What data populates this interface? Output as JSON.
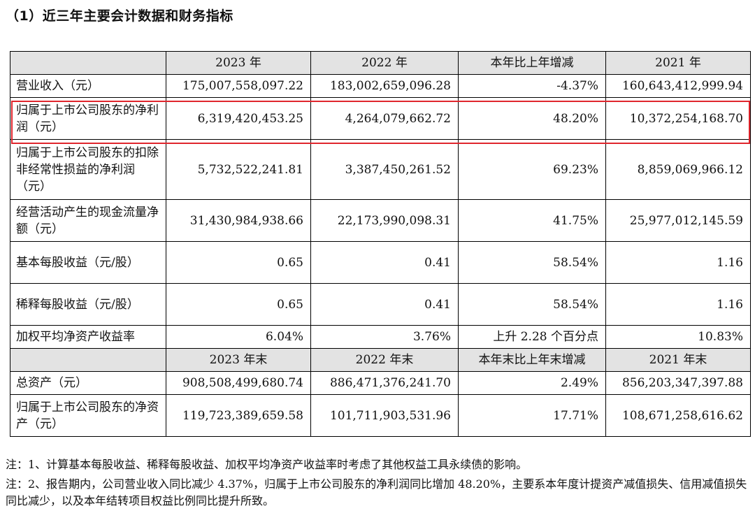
{
  "title": "（1）近三年主要会计数据和财务指标",
  "highlight_color": "#e0262d",
  "header1": [
    "",
    "2023 年",
    "2022 年",
    "本年比上年增减",
    "2021 年"
  ],
  "rows1": [
    {
      "label": "营业收入（元）",
      "v2023": "175,007,558,097.22",
      "v2022": "183,002,659,096.28",
      "change": "-4.37%",
      "v2021": "160,643,412,999.94"
    },
    {
      "label": "归属于上市公司股东的净利润（元）",
      "v2023": "6,319,420,453.25",
      "v2022": "4,264,079,662.72",
      "change": "48.20%",
      "v2021": "10,372,254,168.70"
    },
    {
      "label": "归属于上市公司股东的扣除非经常性损益的净利润（元）",
      "v2023": "5,732,522,241.81",
      "v2022": "3,387,450,261.52",
      "change": "69.23%",
      "v2021": "8,859,069,966.12"
    },
    {
      "label": "经营活动产生的现金流量净额（元）",
      "v2023": "31,430,984,938.66",
      "v2022": "22,173,990,098.31",
      "change": "41.75%",
      "v2021": "25,977,012,145.59"
    },
    {
      "label": "基本每股收益（元/股）",
      "v2023": "0.65",
      "v2022": "0.41",
      "change": "58.54%",
      "v2021": "1.16"
    },
    {
      "label": "稀释每股收益（元/股）",
      "v2023": "0.65",
      "v2022": "0.41",
      "change": "58.54%",
      "v2021": "1.16"
    },
    {
      "label": "加权平均净资产收益率",
      "v2023": "6.04%",
      "v2022": "3.76%",
      "change": "上升 2.28 个百分点",
      "v2021": "10.83%"
    }
  ],
  "header2": [
    "",
    "2023 年末",
    "2022 年末",
    "本年末比上年末增减",
    "2021 年末"
  ],
  "rows2": [
    {
      "label": "总资产（元）",
      "v2023": "908,508,499,680.74",
      "v2022": "886,471,376,241.70",
      "change": "2.49%",
      "v2021": "856,203,347,397.88"
    },
    {
      "label": "归属于上市公司股东的净资产（元）",
      "v2023": "119,723,389,659.58",
      "v2022": "101,711,903,531.96",
      "change": "17.71%",
      "v2021": "108,671,258,616.62"
    }
  ],
  "notes": [
    "注：1、计算基本每股收益、稀释每股收益、加权平均净资产收益率时考虑了其他权益工具永续债的影响。",
    "注：2、报告期内，公司营业收入同比减少 4.37%，归属于上市公司股东的净利润同比增加 48.20%，主要系本年度计提资产减值损失、信用减值损失同比减少，以及本年结转项目权益比例同比提升所致。"
  ]
}
